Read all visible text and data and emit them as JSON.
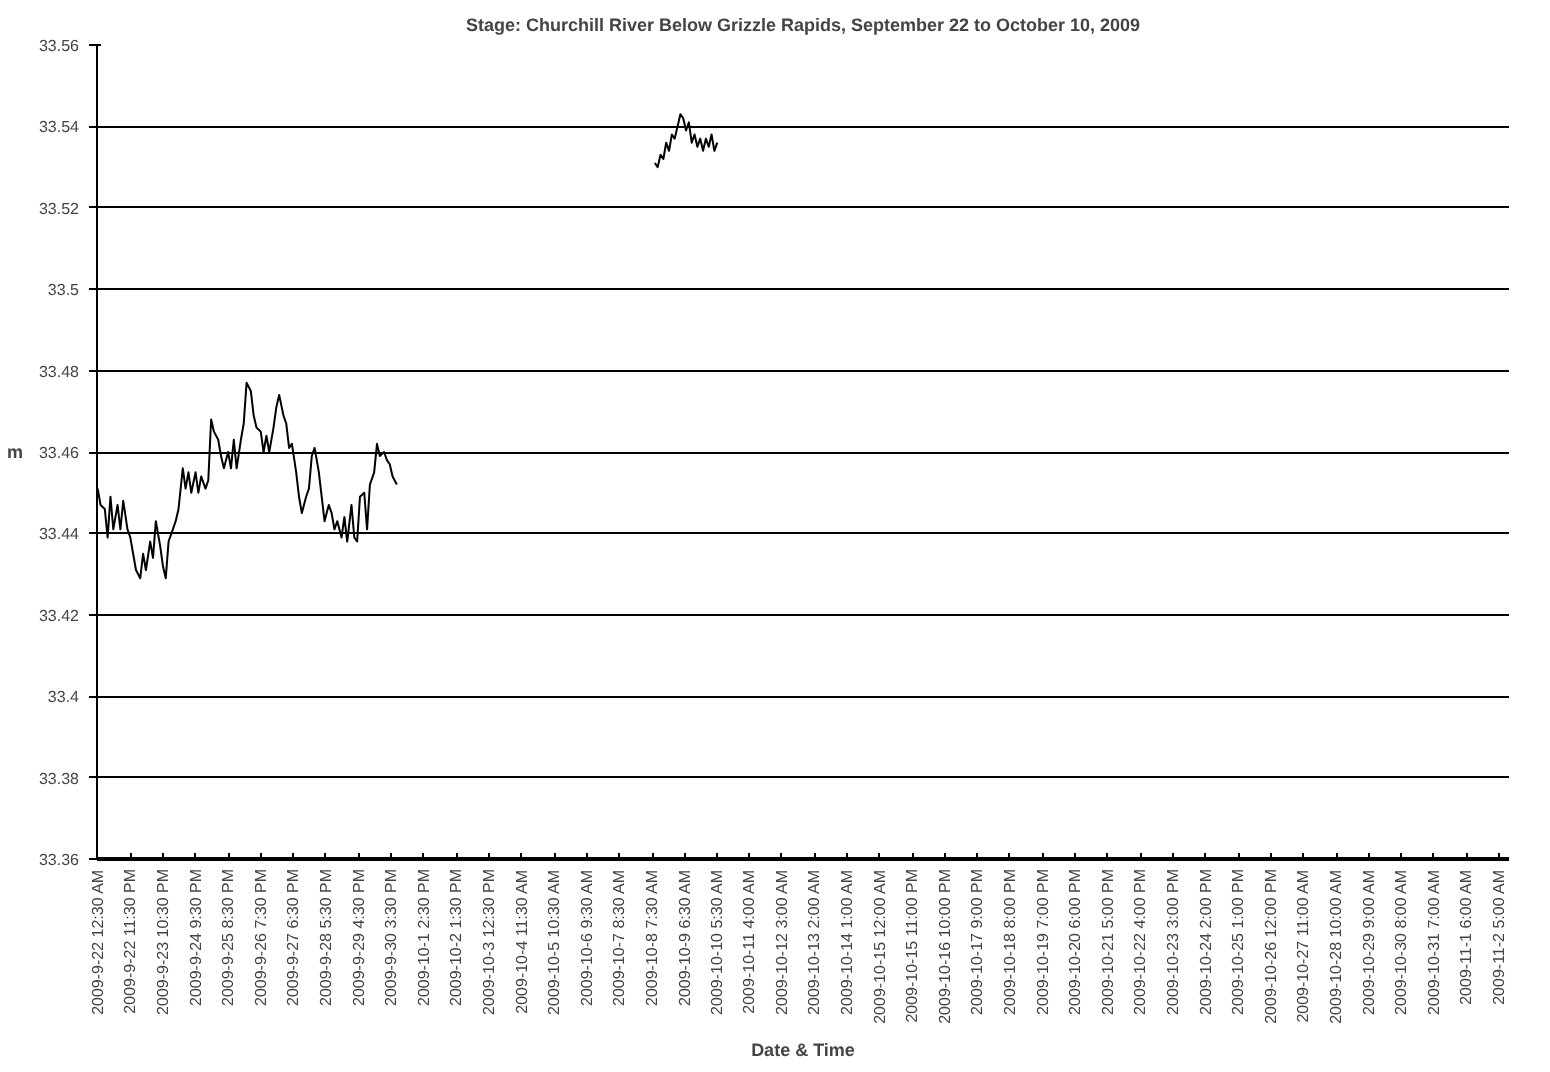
{
  "chart_data": {
    "type": "line",
    "title": "Stage: Churchill River Below Grizzle Rapids, September 22 to October 10, 2009",
    "xlabel": "Date & Time",
    "ylabel": "m",
    "series": [
      {
        "color": "#000000",
        "x": [
          "2009-09-22T00:30",
          "2009-09-22T02:30",
          "2009-09-22T05:30",
          "2009-09-22T07:30",
          "2009-09-22T09:30",
          "2009-09-22T11:30",
          "2009-09-22T14:30",
          "2009-09-22T16:30",
          "2009-09-22T18:30",
          "2009-09-22T21:30",
          "2009-09-22T23:30",
          "2009-09-23T01:30",
          "2009-09-23T03:30",
          "2009-09-23T06:30",
          "2009-09-23T08:30",
          "2009-09-23T10:30",
          "2009-09-23T13:30",
          "2009-09-23T15:30",
          "2009-09-23T17:30",
          "2009-09-23T20:30",
          "2009-09-23T22:30",
          "2009-09-24T00:30",
          "2009-09-24T02:30",
          "2009-09-24T05:30",
          "2009-09-24T07:30",
          "2009-09-24T09:30",
          "2009-09-24T12:30",
          "2009-09-24T14:30",
          "2009-09-24T16:30",
          "2009-09-24T18:30",
          "2009-09-24T21:30",
          "2009-09-24T23:30",
          "2009-09-25T01:30",
          "2009-09-25T04:30",
          "2009-09-25T06:30",
          "2009-09-25T08:30",
          "2009-09-25T10:30",
          "2009-09-25T13:30",
          "2009-09-25T15:30",
          "2009-09-25T17:30",
          "2009-09-25T20:30",
          "2009-09-25T22:30",
          "2009-09-26T00:30",
          "2009-09-26T02:30",
          "2009-09-26T05:30",
          "2009-09-26T07:30",
          "2009-09-26T09:30",
          "2009-09-26T12:30",
          "2009-09-26T14:30",
          "2009-09-26T16:30",
          "2009-09-26T19:30",
          "2009-09-26T21:30",
          "2009-09-26T23:30",
          "2009-09-27T01:30",
          "2009-09-27T04:30",
          "2009-09-27T06:30",
          "2009-09-27T08:30",
          "2009-09-27T11:30",
          "2009-09-27T13:30",
          "2009-09-27T15:30",
          "2009-09-27T17:30",
          "2009-09-27T20:30",
          "2009-09-27T22:30",
          "2009-09-28T00:30",
          "2009-09-28T03:30",
          "2009-09-28T05:30",
          "2009-09-28T07:30",
          "2009-09-28T09:30",
          "2009-09-28T12:30",
          "2009-09-28T14:30",
          "2009-09-28T16:30",
          "2009-09-28T19:30",
          "2009-09-28T21:30",
          "2009-09-28T23:30",
          "2009-09-29T01:30",
          "2009-09-29T04:30",
          "2009-09-29T06:30",
          "2009-09-29T08:30",
          "2009-09-29T11:30",
          "2009-09-29T13:30",
          "2009-09-29T15:30",
          "2009-09-29T17:30",
          "2009-09-29T20:30",
          "2009-09-29T22:30",
          "2009-09-30T00:30",
          "2009-09-30T03:30",
          "2009-09-30T05:30",
          "2009-09-30T07:30",
          "2009-09-30T10:30",
          "2009-09-30T12:30",
          "2009-09-30T14:30",
          "2009-09-30T16:30",
          "2009-09-30T19:30"
        ],
        "values": [
          33.451,
          33.447,
          33.446,
          33.439,
          33.449,
          33.441,
          33.447,
          33.441,
          33.448,
          33.441,
          33.439,
          33.435,
          33.431,
          33.429,
          33.435,
          33.431,
          33.438,
          33.434,
          33.443,
          33.437,
          33.432,
          33.429,
          33.438,
          33.441,
          33.443,
          33.446,
          33.456,
          33.451,
          33.455,
          33.45,
          33.455,
          33.45,
          33.454,
          33.451,
          33.453,
          33.468,
          33.465,
          33.463,
          33.459,
          33.456,
          33.46,
          33.456,
          33.463,
          33.456,
          33.463,
          33.467,
          33.477,
          33.475,
          33.469,
          33.466,
          33.465,
          33.46,
          33.464,
          33.46,
          33.466,
          33.471,
          33.474,
          33.469,
          33.467,
          33.461,
          33.462,
          33.455,
          33.449,
          33.445,
          33.449,
          33.451,
          33.459,
          33.461,
          33.455,
          33.449,
          33.443,
          33.447,
          33.445,
          33.441,
          33.443,
          33.439,
          33.444,
          33.438,
          33.447,
          33.439,
          33.438,
          33.449,
          33.45,
          33.441,
          33.452,
          33.455,
          33.462,
          33.459,
          33.46,
          33.458,
          33.457,
          33.454,
          33.452
        ]
      },
      {
        "color": "#000000",
        "x": [
          "2009-10-08T09:30",
          "2009-10-08T11:30",
          "2009-10-08T13:30",
          "2009-10-08T15:30",
          "2009-10-08T17:30",
          "2009-10-08T19:30",
          "2009-10-08T21:30",
          "2009-10-08T23:30",
          "2009-10-09T01:30",
          "2009-10-09T03:30",
          "2009-10-09T05:30",
          "2009-10-09T07:30",
          "2009-10-09T09:30",
          "2009-10-09T11:30",
          "2009-10-09T13:30",
          "2009-10-09T15:30",
          "2009-10-09T17:30",
          "2009-10-09T19:30",
          "2009-10-09T21:30",
          "2009-10-09T23:30",
          "2009-10-10T01:30",
          "2009-10-10T03:30",
          "2009-10-10T05:30"
        ],
        "values": [
          33.531,
          33.53,
          33.533,
          33.532,
          33.536,
          33.534,
          33.538,
          33.537,
          33.54,
          33.543,
          33.542,
          33.539,
          33.541,
          33.536,
          33.538,
          33.535,
          33.537,
          33.534,
          33.537,
          33.535,
          33.538,
          33.534,
          33.536
        ]
      }
    ],
    "xlim": [
      "2009-09-22T00:00",
      "2009-11-02T12:00"
    ],
    "xticks": [
      {
        "value": "2009-09-22T00:30",
        "label": "2009-9-22 12:30 AM"
      },
      {
        "value": "2009-09-22T23:30",
        "label": "2009-9-22 11:30 PM"
      },
      {
        "value": "2009-09-23T22:30",
        "label": "2009-9-23 10:30 PM"
      },
      {
        "value": "2009-09-24T21:30",
        "label": "2009-9-24 9:30 PM"
      },
      {
        "value": "2009-09-25T20:30",
        "label": "2009-9-25 8:30 PM"
      },
      {
        "value": "2009-09-26T19:30",
        "label": "2009-9-26 7:30 PM"
      },
      {
        "value": "2009-09-27T18:30",
        "label": "2009-9-27 6:30 PM"
      },
      {
        "value": "2009-09-28T17:30",
        "label": "2009-9-28 5:30 PM"
      },
      {
        "value": "2009-09-29T16:30",
        "label": "2009-9-29 4:30 PM"
      },
      {
        "value": "2009-09-30T15:30",
        "label": "2009-9-30 3:30 PM"
      },
      {
        "value": "2009-10-01T14:30",
        "label": "2009-10-1 2:30 PM"
      },
      {
        "value": "2009-10-02T13:30",
        "label": "2009-10-2 1:30 PM"
      },
      {
        "value": "2009-10-03T12:30",
        "label": "2009-10-3 12:30 PM"
      },
      {
        "value": "2009-10-04T11:30",
        "label": "2009-10-4 11:30 AM"
      },
      {
        "value": "2009-10-05T10:30",
        "label": "2009-10-5 10:30 AM"
      },
      {
        "value": "2009-10-06T09:30",
        "label": "2009-10-6 9:30 AM"
      },
      {
        "value": "2009-10-07T08:30",
        "label": "2009-10-7 8:30 AM"
      },
      {
        "value": "2009-10-08T07:30",
        "label": "2009-10-8 7:30 AM"
      },
      {
        "value": "2009-10-09T06:30",
        "label": "2009-10-9 6:30 AM"
      },
      {
        "value": "2009-10-10T05:30",
        "label": "2009-10-10 5:30 AM"
      },
      {
        "value": "2009-10-11T04:00",
        "label": "2009-10-11 4:00 AM"
      },
      {
        "value": "2009-10-12T03:00",
        "label": "2009-10-12 3:00 AM"
      },
      {
        "value": "2009-10-13T02:00",
        "label": "2009-10-13 2:00 AM"
      },
      {
        "value": "2009-10-14T01:00",
        "label": "2009-10-14 1:00 AM"
      },
      {
        "value": "2009-10-15T00:00",
        "label": "2009-10-15 12:00 AM"
      },
      {
        "value": "2009-10-15T23:00",
        "label": "2009-10-15 11:00 PM"
      },
      {
        "value": "2009-10-16T22:00",
        "label": "2009-10-16 10:00 PM"
      },
      {
        "value": "2009-10-17T21:00",
        "label": "2009-10-17 9:00 PM"
      },
      {
        "value": "2009-10-18T20:00",
        "label": "2009-10-18 8:00 PM"
      },
      {
        "value": "2009-10-19T19:00",
        "label": "2009-10-19 7:00 PM"
      },
      {
        "value": "2009-10-20T18:00",
        "label": "2009-10-20 6:00 PM"
      },
      {
        "value": "2009-10-21T17:00",
        "label": "2009-10-21 5:00 PM"
      },
      {
        "value": "2009-10-22T16:00",
        "label": "2009-10-22 4:00 PM"
      },
      {
        "value": "2009-10-23T15:00",
        "label": "2009-10-23 3:00 PM"
      },
      {
        "value": "2009-10-24T14:00",
        "label": "2009-10-24 2:00 PM"
      },
      {
        "value": "2009-10-25T13:00",
        "label": "2009-10-25 1:00 PM"
      },
      {
        "value": "2009-10-26T12:00",
        "label": "2009-10-26 12:00 PM"
      },
      {
        "value": "2009-10-27T11:00",
        "label": "2009-10-27 11:00 AM"
      },
      {
        "value": "2009-10-28T10:00",
        "label": "2009-10-28 10:00 AM"
      },
      {
        "value": "2009-10-29T09:00",
        "label": "2009-10-29 9:00 AM"
      },
      {
        "value": "2009-10-30T08:00",
        "label": "2009-10-30 8:00 AM"
      },
      {
        "value": "2009-10-31T07:00",
        "label": "2009-10-31 7:00 AM"
      },
      {
        "value": "2009-11-01T06:00",
        "label": "2009-11-1 6:00 AM"
      },
      {
        "value": "2009-11-02T05:00",
        "label": "2009-11-2 5:00 AM"
      }
    ],
    "ylim": [
      33.36,
      33.56
    ],
    "yticks": [
      33.36,
      33.38,
      33.4,
      33.42,
      33.44,
      33.46,
      33.48,
      33.5,
      33.52,
      33.54,
      33.56
    ],
    "grid": "y",
    "marker": "none",
    "line_style": "solid"
  }
}
